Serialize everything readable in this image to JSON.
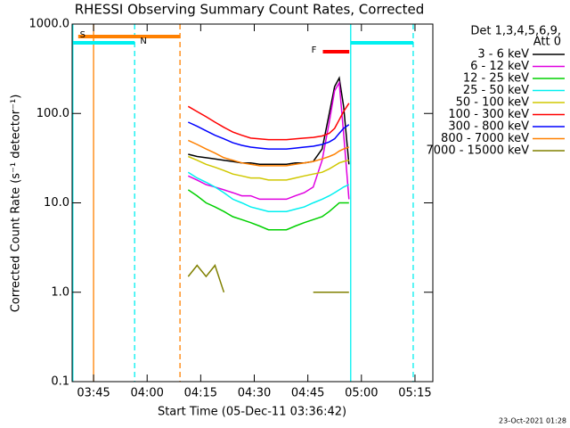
{
  "chart_data": {
    "type": "line",
    "title": "RHESSI Observing Summary Count Rates, Corrected",
    "x_label": "Start Time (05-Dec-11 03:36:42)",
    "y_label": "Corrected Count Rate (s⁻¹ detector⁻¹)",
    "footer": "23-Oct-2021 01:28",
    "legend_title": [
      "Det 1,3,4,5,6,9,",
      "Att 0"
    ],
    "log_y": true,
    "xlim": [
      219,
      320
    ],
    "ylim": [
      0.1,
      1000
    ],
    "xticks": [
      {
        "value": 225,
        "label": "03:45"
      },
      {
        "value": 240,
        "label": "04:00"
      },
      {
        "value": 255,
        "label": "04:15"
      },
      {
        "value": 270,
        "label": "04:30"
      },
      {
        "value": 285,
        "label": "04:45"
      },
      {
        "value": 300,
        "label": "05:00"
      },
      {
        "value": 315,
        "label": "05:15"
      }
    ],
    "yticks": [
      {
        "value": 1000,
        "label": "1000.0"
      },
      {
        "value": 100,
        "label": "100.0"
      },
      {
        "value": 10,
        "label": "10.0"
      },
      {
        "value": 1,
        "label": "1.0"
      },
      0.1
    ],
    "x": [
      251.5,
      254,
      256.5,
      259,
      261.5,
      264,
      266.5,
      269,
      271.5,
      274,
      276.5,
      279,
      281.5,
      284,
      286.5,
      289,
      291,
      292.5,
      293.8,
      295,
      296.5
    ],
    "series": [
      {
        "name": "3 - 6 keV",
        "color": "#000000",
        "values": [
          35,
          33,
          32,
          31,
          30,
          29,
          28,
          28,
          27,
          27,
          27,
          27,
          28,
          28,
          29,
          40,
          100,
          200,
          250,
          120,
          27
        ]
      },
      {
        "name": "6 - 12 keV",
        "color": "#e000e0",
        "values": [
          20,
          18,
          16,
          15,
          14,
          13,
          12,
          12,
          11,
          11,
          11,
          11,
          12,
          13,
          15,
          30,
          80,
          180,
          220,
          60,
          11
        ]
      },
      {
        "name": "12 - 25 keV",
        "color": "#00d000",
        "values": [
          14,
          12,
          10,
          9,
          8,
          7,
          6.5,
          6,
          5.5,
          5,
          5,
          5,
          5.5,
          6,
          6.5,
          7,
          8,
          9,
          10,
          10,
          10
        ]
      },
      {
        "name": "25 - 50 keV",
        "color": "#00f0f0",
        "values": [
          22,
          19,
          17,
          15,
          13,
          11,
          10,
          9,
          8.5,
          8,
          8,
          8,
          8.5,
          9,
          10,
          11,
          12,
          13,
          14,
          15,
          16
        ]
      },
      {
        "name": "50 - 100 keV",
        "color": "#d0c800",
        "values": [
          33,
          30,
          27,
          25,
          23,
          21,
          20,
          19,
          19,
          18,
          18,
          18,
          19,
          20,
          21,
          22,
          24,
          26,
          28,
          29,
          30
        ]
      },
      {
        "name": "100 - 300 keV",
        "color": "#ff0000",
        "values": [
          120,
          105,
          92,
          80,
          70,
          62,
          57,
          53,
          52,
          51,
          51,
          51,
          52,
          53,
          54,
          56,
          60,
          68,
          85,
          105,
          130
        ]
      },
      {
        "name": "300 - 800 keV",
        "color": "#0000ff",
        "values": [
          80,
          72,
          64,
          57,
          52,
          47,
          44,
          42,
          41,
          40,
          40,
          40,
          41,
          42,
          43,
          45,
          48,
          52,
          60,
          68,
          75
        ]
      },
      {
        "name": "800 - 7000 keV",
        "color": "#ff8000",
        "values": [
          50,
          45,
          40,
          36,
          32,
          30,
          28,
          27,
          26,
          26,
          26,
          26,
          27,
          28,
          29,
          31,
          33,
          35,
          38,
          40,
          42
        ]
      },
      {
        "name": "7000 - 15000 keV",
        "color": "#808000",
        "values": [
          1.5,
          2,
          1.5,
          2,
          1,
          null,
          null,
          null,
          null,
          null,
          null,
          null,
          null,
          null,
          1,
          1,
          1,
          1,
          1,
          1,
          1
        ]
      }
    ],
    "flags": [
      {
        "label": "S",
        "color": "#ff8000",
        "start": 220.7,
        "end": 249.2
      },
      {
        "label": "N",
        "color": "#00f0f0",
        "start": 219,
        "end": 236.5
      },
      {
        "color": "#00f0f0",
        "start": 297,
        "end": 314.5
      },
      {
        "label": "F",
        "color": "#ff0000",
        "start": 289.2,
        "end": 296.6
      }
    ],
    "vlines": [
      {
        "x": 225,
        "color": "#ff8000",
        "dashed": false
      },
      {
        "x": 249.2,
        "color": "#ff8000",
        "dashed": true
      },
      {
        "x": 219.2,
        "color": "#00f0f0",
        "dashed": false
      },
      {
        "x": 236.5,
        "color": "#00f0f0",
        "dashed": true
      },
      {
        "x": 297,
        "color": "#00f0f0",
        "dashed": false
      },
      {
        "x": 314.5,
        "color": "#00f0f0",
        "dashed": true
      }
    ]
  }
}
